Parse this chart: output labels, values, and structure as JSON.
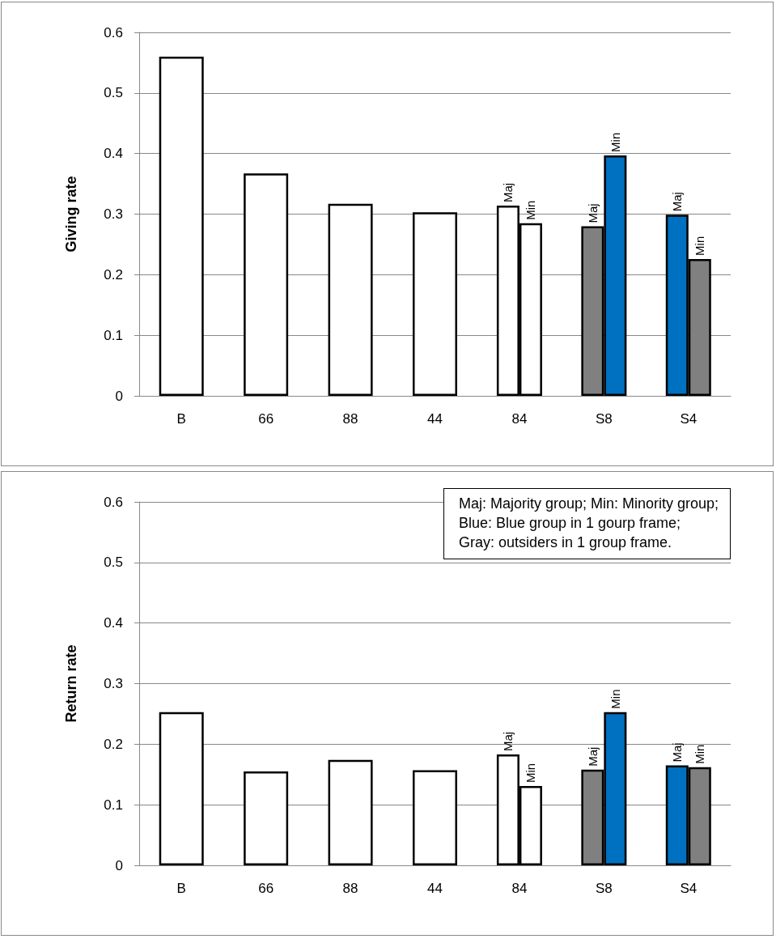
{
  "chart_data": [
    {
      "type": "bar",
      "ylabel": "Giving rate",
      "categories": [
        "B",
        "66",
        "88",
        "44",
        "84",
        "S8",
        "S4"
      ],
      "series": [
        {
          "color": "#ffffff",
          "values": [
            0.56,
            0.367,
            0.317,
            0.303,
            null,
            null,
            null
          ]
        },
        {
          "name": "Maj",
          "colors": [
            "#ffffff",
            "#ffffff",
            "#ffffff",
            "#ffffff",
            "#ffffff",
            "#808080",
            "#0070c0"
          ],
          "values": [
            null,
            null,
            null,
            null,
            0.314,
            0.28,
            0.299
          ]
        },
        {
          "name": "Min",
          "colors": [
            "#ffffff",
            "#ffffff",
            "#ffffff",
            "#ffffff",
            "#ffffff",
            "#0070c0",
            "#808080"
          ],
          "values": [
            null,
            null,
            null,
            null,
            0.285,
            0.397,
            0.226
          ]
        }
      ],
      "ylim": [
        0,
        0.6
      ],
      "yticks": [
        0,
        0.1,
        0.2,
        0.3,
        0.4,
        0.5,
        0.6
      ],
      "grid": "y"
    },
    {
      "type": "bar",
      "ylabel": "Return rate",
      "categories": [
        "B",
        "66",
        "88",
        "44",
        "84",
        "S8",
        "S4"
      ],
      "series": [
        {
          "color": "#ffffff",
          "values": [
            0.253,
            0.155,
            0.174,
            0.157,
            null,
            null,
            null
          ]
        },
        {
          "name": "Maj",
          "colors": [
            "#ffffff",
            "#ffffff",
            "#ffffff",
            "#ffffff",
            "#ffffff",
            "#808080",
            "#0070c0"
          ],
          "values": [
            null,
            null,
            null,
            null,
            0.183,
            0.158,
            0.165
          ]
        },
        {
          "name": "Min",
          "colors": [
            "#ffffff",
            "#ffffff",
            "#ffffff",
            "#ffffff",
            "#ffffff",
            "#0070c0",
            "#808080"
          ],
          "values": [
            null,
            null,
            null,
            null,
            0.131,
            0.253,
            0.162
          ]
        }
      ],
      "ylim": [
        0,
        0.6
      ],
      "yticks": [
        0,
        0.1,
        0.2,
        0.3,
        0.4,
        0.5,
        0.6
      ],
      "grid": "y",
      "annotations": [
        "Maj: Majority group; Min: Minority group;",
        "Blue: Blue group in 1 gourp frame;",
        "Gray: outsiders in 1 group frame."
      ]
    }
  ]
}
